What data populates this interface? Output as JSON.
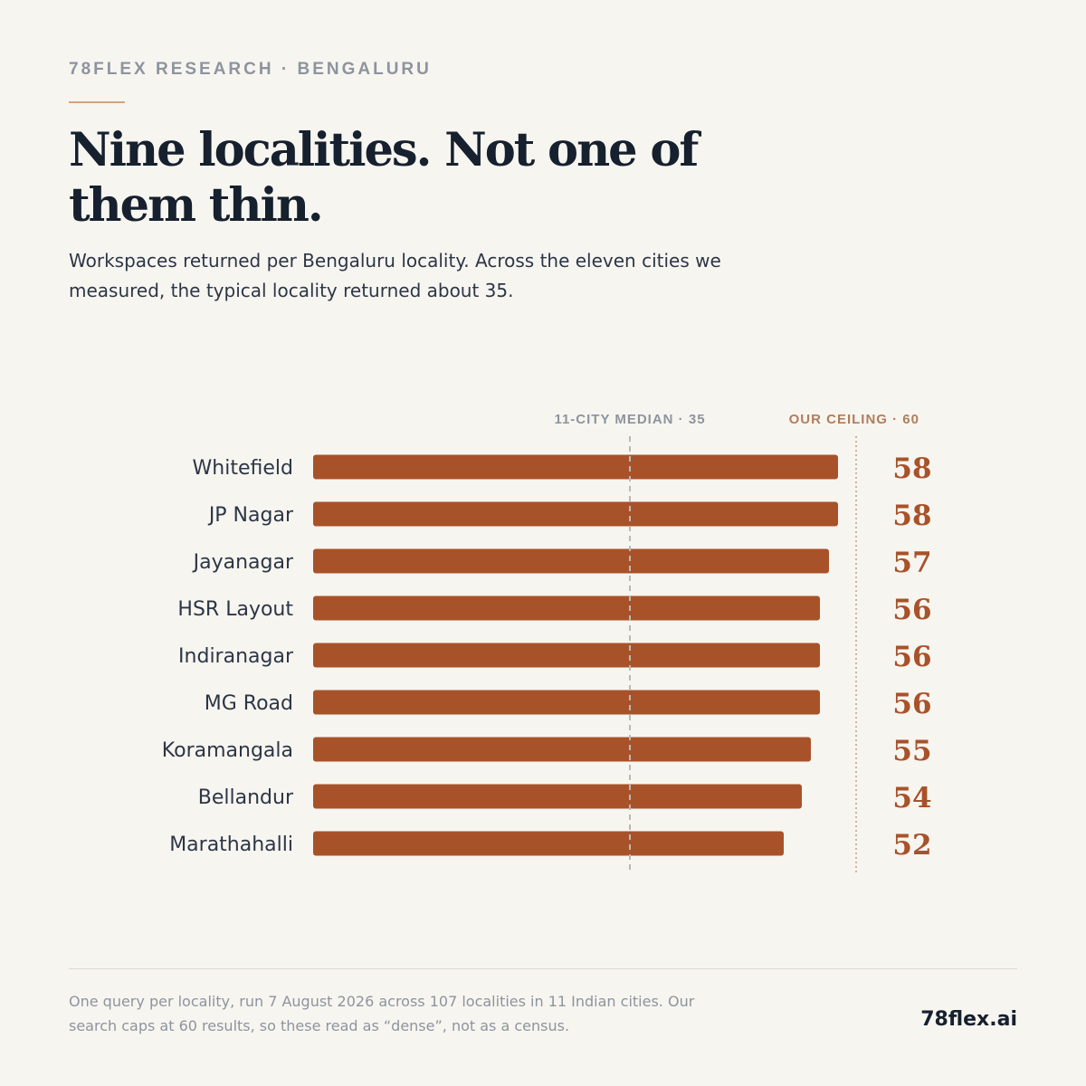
{
  "header": {
    "eyebrow": "78FLEX RESEARCH · BENGALURU",
    "title": "Nine localities. Not one of them thin.",
    "subtitle": "Workspaces returned per Bengaluru locality. Across the eleven cities we measured, the typical locality returned about 35."
  },
  "chart_data": {
    "type": "bar",
    "orientation": "horizontal",
    "categories": [
      "Whitefield",
      "JP Nagar",
      "Jayanagar",
      "HSR Layout",
      "Indiranagar",
      "MG Road",
      "Koramangala",
      "Bellandur",
      "Marathahalli"
    ],
    "values": [
      58,
      58,
      57,
      56,
      56,
      56,
      55,
      54,
      52
    ],
    "xlim": [
      0,
      60
    ],
    "title": "",
    "xlabel": "",
    "ylabel": "",
    "grid": false,
    "legend": "none",
    "bar_color": "#a8522a",
    "reference_lines": [
      {
        "label": "11-CITY MEDIAN · 35",
        "value": 35,
        "style": "dashed",
        "color": "#b9b9b4",
        "label_color": "#8d949e"
      },
      {
        "label": "OUR CEILING · 60",
        "value": 60,
        "style": "dotted",
        "color": "#c69c7c",
        "label_color": "#b07e5c"
      }
    ]
  },
  "footer": {
    "note": "One query per locality, run 7 August 2026 across 107 localities in 11 Indian cities. Our search caps at 60 results, so these read as “dense”, not as a census.",
    "brand": "78flex.ai"
  }
}
